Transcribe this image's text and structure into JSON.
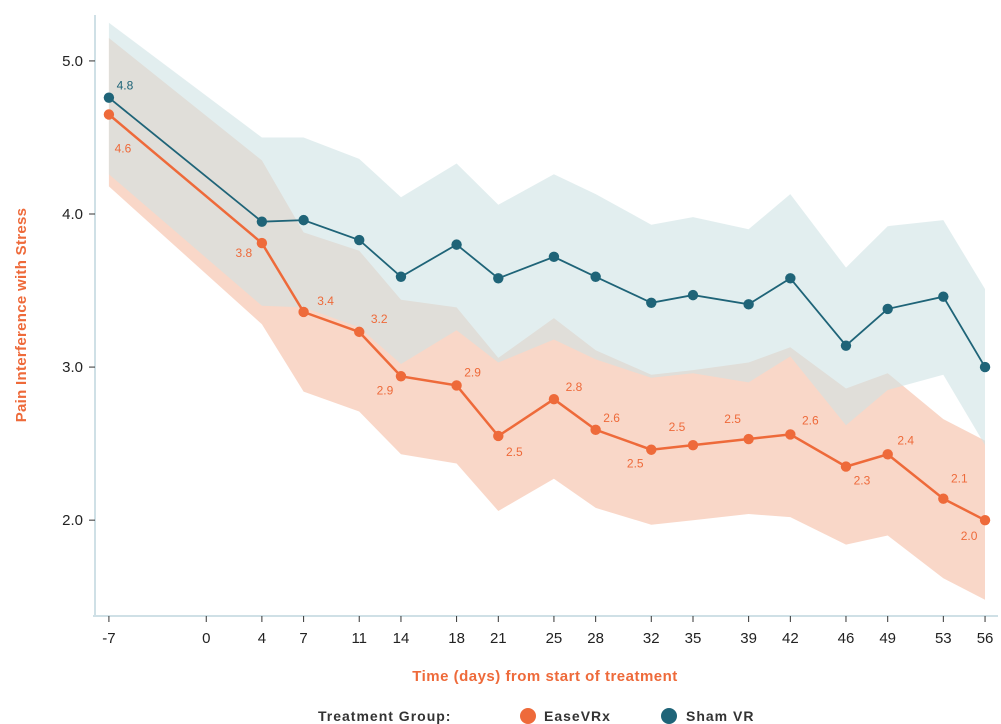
{
  "chart_data": {
    "type": "line",
    "title": "",
    "xlabel": "Time (days) from start of treatment",
    "ylabel": "Pain Interference with Stress",
    "x": [
      -7,
      4,
      7,
      11,
      14,
      18,
      21,
      25,
      28,
      32,
      35,
      39,
      42,
      46,
      49,
      53,
      56
    ],
    "x_ticks": [
      -7,
      0,
      4,
      7,
      11,
      14,
      18,
      21,
      25,
      28,
      32,
      35,
      39,
      42,
      46,
      49,
      53,
      56
    ],
    "y_ticks": [
      "5.0",
      "4.0",
      "3.0",
      "2.0"
    ],
    "y_tick_values": [
      5.0,
      4.0,
      3.0,
      2.0
    ],
    "ylim": [
      1.4,
      5.3
    ],
    "xlim": [
      -8,
      56.5
    ],
    "grid": false,
    "legend": {
      "title": "Treatment Group:",
      "position": "bottom-center"
    },
    "series": [
      {
        "name": "EaseVRx",
        "color": "#ee6a3a",
        "band_color": "#f7c9b5",
        "values": [
          4.65,
          3.81,
          3.36,
          3.23,
          2.94,
          2.88,
          2.55,
          2.79,
          2.59,
          2.46,
          2.49,
          2.53,
          2.56,
          2.35,
          2.43,
          2.14,
          2.0
        ],
        "lower": [
          4.18,
          3.28,
          2.84,
          2.71,
          2.43,
          2.37,
          2.06,
          2.27,
          2.08,
          1.97,
          2.0,
          2.04,
          2.02,
          1.84,
          1.9,
          1.62,
          1.48
        ],
        "upper": [
          5.15,
          4.35,
          3.88,
          3.76,
          3.44,
          3.39,
          3.06,
          3.32,
          3.11,
          2.95,
          2.98,
          3.03,
          3.13,
          2.86,
          2.96,
          2.66,
          2.52
        ],
        "labels": [
          "4.6",
          "3.8",
          "3.4",
          "3.2",
          "2.9",
          "2.9",
          "2.5",
          "2.8",
          "2.6",
          "2.5",
          "2.5",
          "2.5",
          "2.6",
          "2.3",
          "2.4",
          "2.1",
          "2.0"
        ]
      },
      {
        "name": "Sham VR",
        "color": "#1f6478",
        "band_color": "#cfe3e4",
        "values": [
          4.76,
          3.95,
          3.96,
          3.83,
          3.59,
          3.8,
          3.58,
          3.72,
          3.59,
          3.42,
          3.47,
          3.41,
          3.58,
          3.14,
          3.38,
          3.46,
          3.0
        ],
        "lower": [
          4.26,
          3.4,
          3.39,
          3.26,
          3.02,
          3.24,
          3.03,
          3.18,
          3.05,
          2.93,
          2.96,
          2.9,
          3.07,
          2.62,
          2.85,
          2.95,
          2.49
        ],
        "upper": [
          5.25,
          4.5,
          4.5,
          4.36,
          4.11,
          4.33,
          4.06,
          4.26,
          4.13,
          3.93,
          3.98,
          3.9,
          4.13,
          3.65,
          3.92,
          3.96,
          3.51
        ],
        "labels": [
          "4.8"
        ]
      }
    ]
  }
}
